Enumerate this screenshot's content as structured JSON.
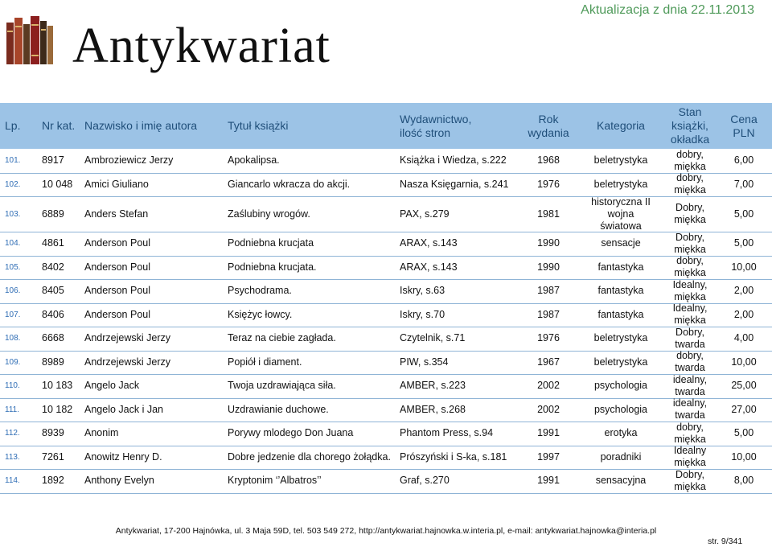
{
  "header": {
    "logo_text": "Antykwariat",
    "update": "Aktualizacja z dnia 22.11.2013"
  },
  "table": {
    "columns": [
      [
        "Lp."
      ],
      [
        "Nr kat."
      ],
      [
        "Nazwisko i imię autora"
      ],
      [
        "Tytuł książki"
      ],
      [
        "Wydawnictwo,",
        "ilość stron"
      ],
      [
        "Rok",
        "wydania"
      ],
      [
        "Kategoria"
      ],
      [
        "Stan",
        "książki,",
        "okładka"
      ],
      [
        "Cena",
        "PLN"
      ]
    ],
    "rows": [
      [
        "101.",
        "8917",
        "Ambroziewicz Jerzy",
        "Apokalipsa.",
        "Książka i Wiedza, s.222",
        "1968",
        "beletrystyka",
        "dobry, miękka",
        "6,00"
      ],
      [
        "102.",
        "10 048",
        "Amici Giuliano",
        "Giancarlo wkracza do akcji.",
        "Nasza  Księgarnia, s.241",
        "1976",
        "beletrystyka",
        "dobry, miękka",
        "7,00"
      ],
      [
        "103.",
        "6889",
        "Anders Stefan",
        "Zaślubiny wrogów.",
        "PAX, s.279",
        "1981",
        "historyczna II wojna światowa",
        "Dobry, miękka",
        "5,00"
      ],
      [
        "104.",
        "4861",
        "Anderson Poul",
        "Podniebna krucjata",
        "ARAX, s.143",
        "1990",
        "sensacje",
        "Dobry, miękka",
        "5,00"
      ],
      [
        "105.",
        "8402",
        "Anderson Poul",
        "Podniebna krucjata.",
        "ARAX, s.143",
        "1990",
        "fantastyka",
        "dobry, miękka",
        "10,00"
      ],
      [
        "106.",
        "8405",
        "Anderson Poul",
        "Psychodrama.",
        "Iskry, s.63",
        "1987",
        "fantastyka",
        "Idealny, miękka",
        "2,00"
      ],
      [
        "107.",
        "8406",
        "Anderson Poul",
        "Księżyc łowcy.",
        "Iskry, s.70",
        "1987",
        "fantastyka",
        "Idealny, miękka",
        "2,00"
      ],
      [
        "108.",
        "6668",
        "Andrzejewski Jerzy",
        "Teraz na ciebie zagłada.",
        "Czytelnik, s.71",
        "1976",
        "beletrystyka",
        "Dobry, twarda",
        "4,00"
      ],
      [
        "109.",
        "8989",
        "Andrzejewski Jerzy",
        "Popiół i diament.",
        "PIW, s.354",
        "1967",
        "beletrystyka",
        "dobry, twarda",
        "10,00"
      ],
      [
        "110.",
        "10 183",
        "Angelo Jack",
        "Twoja uzdrawiająca siła.",
        "AMBER, s.223",
        "2002",
        "psychologia",
        "idealny, twarda",
        "25,00"
      ],
      [
        "111.",
        "10 182",
        "Angelo Jack i Jan",
        "Uzdrawianie duchowe.",
        "AMBER, s.268",
        "2002",
        "psychologia",
        "idealny, twarda",
        "27,00"
      ],
      [
        "112.",
        "8939",
        "Anonim",
        "Porywy mlodego Don Juana",
        "Phantom Press, s.94",
        "1991",
        "erotyka",
        "dobry, miękka",
        "5,00"
      ],
      [
        "113.",
        "7261",
        "Anowitz Henry D.",
        "Dobre jedzenie dla chorego żołądka.",
        "Prószyński i S-ka, s.181",
        "1997",
        "poradniki",
        "Idealny miękka",
        "10,00"
      ],
      [
        "114.",
        "1892",
        "Anthony Evelyn",
        "Kryptonim ‘’Albatros’’",
        "Graf, s.270",
        "1991",
        "sensacyjna",
        "Dobry, miękka",
        "8,00"
      ]
    ]
  },
  "footer": {
    "contact": "Antykwariat, 17-200 Hajnówka, ul. 3 Maja 59D, tel. 503 549 272, http://antykwariat.hajnowka.w.interia.pl,  e-mail: antykwariat.hajnowka@interia.pl",
    "page": "str. 9/341"
  }
}
